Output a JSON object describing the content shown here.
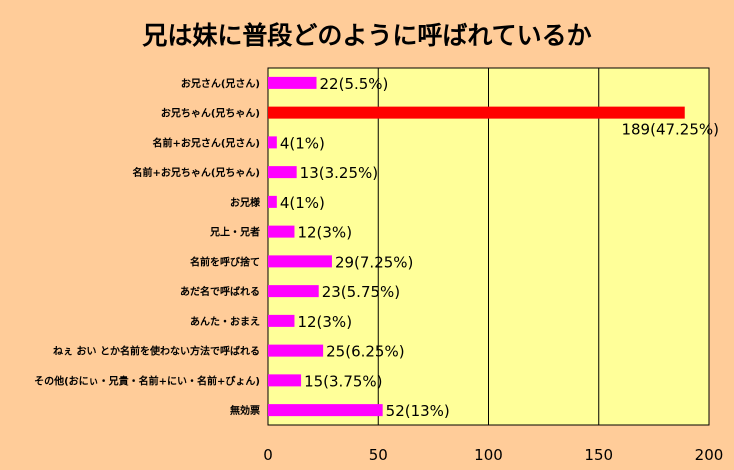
{
  "chart_data": {
    "type": "bar",
    "orientation": "horizontal",
    "title": "兄は妹に普段どのように呼ばれているか",
    "categories": [
      "お兄さん(兄さん)",
      "お兄ちゃん(兄ちゃん)",
      "名前+お兄さん(兄さん)",
      "名前+お兄ちゃん(兄ちゃん)",
      "お兄様",
      "兄上・兄者",
      "名前を呼び捨て",
      "あだ名で呼ばれる",
      "あんた・おまえ",
      "ねぇ おい とか名前を使わない方法で呼ばれる",
      "その他(おにぃ・兄貴・名前+にい・名前+ぴょん)",
      "無効票"
    ],
    "values": [
      22,
      189,
      4,
      13,
      4,
      12,
      29,
      23,
      12,
      25,
      15,
      52
    ],
    "data_labels": [
      "22(5.5%)",
      "189(47.25%)",
      "4(1%)",
      "13(3.25%)",
      "4(1%)",
      "12(3%)",
      "29(7.25%)",
      "23(5.75%)",
      "12(3%)",
      "25(6.25%)",
      "15(3.75%)",
      "52(13%)"
    ],
    "xlim": [
      0,
      200
    ],
    "xticks": [
      0,
      50,
      100,
      150,
      200
    ],
    "grid": true,
    "legend": "none",
    "colors": {
      "bar": "#ff00ff",
      "highlight": "#ff0000",
      "plot_bg": "#ffff99",
      "page_bg": "#ffcc99"
    },
    "highlight_index": 1
  }
}
